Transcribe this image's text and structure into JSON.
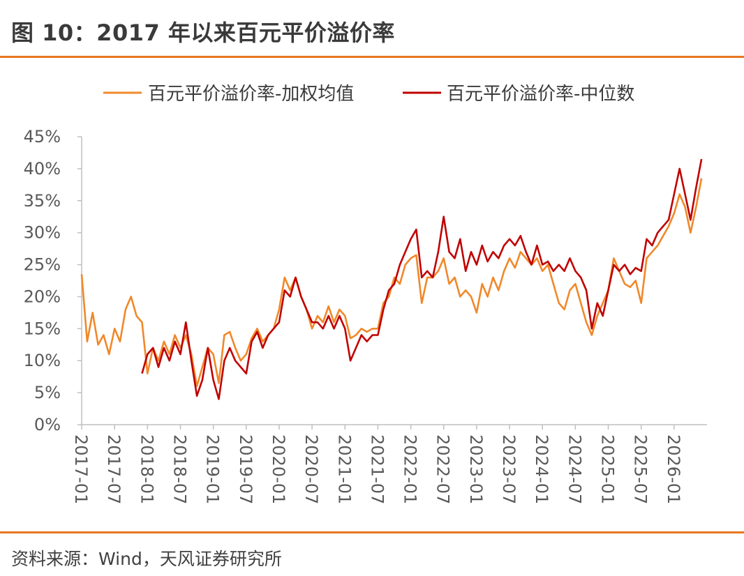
{
  "title": "图 10：2017 年以来百元平价溢价率",
  "source": "资料来源：Wind，天风证券研究所",
  "colors": {
    "accent": "#e87722",
    "weighted": "#f0882a",
    "median": "#c00000"
  },
  "chart_data": {
    "type": "line",
    "title": "",
    "xlabel": "",
    "ylabel": "",
    "ylim": [
      0,
      45
    ],
    "y_ticks": [
      "0%",
      "5%",
      "10%",
      "15%",
      "20%",
      "25%",
      "30%",
      "35%",
      "40%",
      "45%"
    ],
    "x_ticks": [
      "2017-01",
      "2017-07",
      "2018-01",
      "2018-07",
      "2019-01",
      "2019-07",
      "2020-01",
      "2020-07",
      "2021-01",
      "2021-07",
      "2022-01",
      "2022-07",
      "2023-01",
      "2023-07",
      "2024-01",
      "2024-07",
      "2025-01",
      "2025-07",
      "2026-01"
    ],
    "xlim": [
      "2017-01",
      "2026-07"
    ],
    "grid": false,
    "legend": "top",
    "series": [
      {
        "name": "百元平价溢价率-加权均值",
        "color": "#f0882a",
        "points": [
          [
            "2017-01",
            23.5
          ],
          [
            "2017-02",
            13
          ],
          [
            "2017-03",
            17.5
          ],
          [
            "2017-04",
            12.5
          ],
          [
            "2017-05",
            14
          ],
          [
            "2017-06",
            11
          ],
          [
            "2017-07",
            15
          ],
          [
            "2017-08",
            13
          ],
          [
            "2017-09",
            18
          ],
          [
            "2017-10",
            20
          ],
          [
            "2017-11",
            17
          ],
          [
            "2017-12",
            16
          ],
          [
            "2018-01",
            8
          ],
          [
            "2018-02",
            12
          ],
          [
            "2018-03",
            10
          ],
          [
            "2018-04",
            13
          ],
          [
            "2018-05",
            11
          ],
          [
            "2018-06",
            14
          ],
          [
            "2018-07",
            12
          ],
          [
            "2018-08",
            14
          ],
          [
            "2018-09",
            11
          ],
          [
            "2018-10",
            6
          ],
          [
            "2018-11",
            9
          ],
          [
            "2018-12",
            12
          ],
          [
            "2019-01",
            11
          ],
          [
            "2019-02",
            6.5
          ],
          [
            "2019-03",
            14
          ],
          [
            "2019-04",
            14.5
          ],
          [
            "2019-05",
            12
          ],
          [
            "2019-06",
            10
          ],
          [
            "2019-07",
            11
          ],
          [
            "2019-08",
            13.5
          ],
          [
            "2019-09",
            15
          ],
          [
            "2019-10",
            13
          ],
          [
            "2019-11",
            14
          ],
          [
            "2019-12",
            15
          ],
          [
            "2020-01",
            18
          ],
          [
            "2020-02",
            23
          ],
          [
            "2020-03",
            21
          ],
          [
            "2020-04",
            23
          ],
          [
            "2020-05",
            20
          ],
          [
            "2020-06",
            18
          ],
          [
            "2020-07",
            15
          ],
          [
            "2020-08",
            17
          ],
          [
            "2020-09",
            16
          ],
          [
            "2020-10",
            18.5
          ],
          [
            "2020-11",
            16
          ],
          [
            "2020-12",
            18
          ],
          [
            "2021-01",
            17
          ],
          [
            "2021-02",
            13.5
          ],
          [
            "2021-03",
            14
          ],
          [
            "2021-04",
            15
          ],
          [
            "2021-05",
            14.5
          ],
          [
            "2021-06",
            15
          ],
          [
            "2021-07",
            15
          ],
          [
            "2021-08",
            19
          ],
          [
            "2021-09",
            20
          ],
          [
            "2021-10",
            23
          ],
          [
            "2021-11",
            22
          ],
          [
            "2021-12",
            25
          ],
          [
            "2022-01",
            26
          ],
          [
            "2022-02",
            26.5
          ],
          [
            "2022-03",
            19
          ],
          [
            "2022-04",
            23
          ],
          [
            "2022-05",
            23
          ],
          [
            "2022-06",
            24
          ],
          [
            "2022-07",
            26
          ],
          [
            "2022-08",
            22
          ],
          [
            "2022-09",
            23
          ],
          [
            "2022-10",
            20
          ],
          [
            "2022-11",
            21
          ],
          [
            "2022-12",
            20
          ],
          [
            "2023-01",
            17.5
          ],
          [
            "2023-02",
            22
          ],
          [
            "2023-03",
            20
          ],
          [
            "2023-04",
            23
          ],
          [
            "2023-05",
            21
          ],
          [
            "2023-06",
            24
          ],
          [
            "2023-07",
            26
          ],
          [
            "2023-08",
            24.5
          ],
          [
            "2023-09",
            27
          ],
          [
            "2023-10",
            26
          ],
          [
            "2023-11",
            25
          ],
          [
            "2023-12",
            26
          ],
          [
            "2024-01",
            24
          ],
          [
            "2024-02",
            25
          ],
          [
            "2024-03",
            22
          ],
          [
            "2024-04",
            19
          ],
          [
            "2024-05",
            18
          ],
          [
            "2024-06",
            21
          ],
          [
            "2024-07",
            22
          ],
          [
            "2024-08",
            19
          ],
          [
            "2024-09",
            16
          ],
          [
            "2024-10",
            14
          ],
          [
            "2024-11",
            17
          ],
          [
            "2024-12",
            19
          ],
          [
            "2025-01",
            21
          ],
          [
            "2025-02",
            26
          ],
          [
            "2025-03",
            24
          ],
          [
            "2025-04",
            22
          ],
          [
            "2025-05",
            21.5
          ],
          [
            "2025-06",
            22.5
          ],
          [
            "2025-07",
            19
          ],
          [
            "2025-08",
            26
          ],
          [
            "2025-09",
            27
          ],
          [
            "2025-10",
            28
          ],
          [
            "2025-11",
            29.5
          ],
          [
            "2025-12",
            31
          ],
          [
            "2026-01",
            33
          ],
          [
            "2026-02",
            36
          ],
          [
            "2026-03",
            34
          ],
          [
            "2026-04",
            30
          ],
          [
            "2026-05",
            34
          ],
          [
            "2026-06",
            38.5
          ]
        ]
      },
      {
        "name": "百元平价溢价率-中位数",
        "color": "#c00000",
        "points": [
          [
            "2017-12",
            8
          ],
          [
            "2018-01",
            11
          ],
          [
            "2018-02",
            12
          ],
          [
            "2018-03",
            9
          ],
          [
            "2018-04",
            12
          ],
          [
            "2018-05",
            10
          ],
          [
            "2018-06",
            13
          ],
          [
            "2018-07",
            11
          ],
          [
            "2018-08",
            16
          ],
          [
            "2018-09",
            10
          ],
          [
            "2018-10",
            4.5
          ],
          [
            "2018-11",
            7
          ],
          [
            "2018-12",
            12
          ],
          [
            "2019-01",
            7
          ],
          [
            "2019-02",
            4
          ],
          [
            "2019-03",
            10
          ],
          [
            "2019-04",
            12
          ],
          [
            "2019-05",
            10
          ],
          [
            "2019-06",
            9
          ],
          [
            "2019-07",
            8
          ],
          [
            "2019-08",
            13
          ],
          [
            "2019-09",
            14.5
          ],
          [
            "2019-10",
            12
          ],
          [
            "2019-11",
            14
          ],
          [
            "2019-12",
            15
          ],
          [
            "2020-01",
            16
          ],
          [
            "2020-02",
            21
          ],
          [
            "2020-03",
            20
          ],
          [
            "2020-04",
            23
          ],
          [
            "2020-05",
            20
          ],
          [
            "2020-06",
            18
          ],
          [
            "2020-07",
            16
          ],
          [
            "2020-08",
            16
          ],
          [
            "2020-09",
            15
          ],
          [
            "2020-10",
            17
          ],
          [
            "2020-11",
            15
          ],
          [
            "2020-12",
            17
          ],
          [
            "2021-01",
            15
          ],
          [
            "2021-02",
            10
          ],
          [
            "2021-03",
            12
          ],
          [
            "2021-04",
            14
          ],
          [
            "2021-05",
            13
          ],
          [
            "2021-06",
            14
          ],
          [
            "2021-07",
            14
          ],
          [
            "2021-08",
            18
          ],
          [
            "2021-09",
            21
          ],
          [
            "2021-10",
            22
          ],
          [
            "2021-11",
            25
          ],
          [
            "2021-12",
            27
          ],
          [
            "2022-01",
            29
          ],
          [
            "2022-02",
            30.5
          ],
          [
            "2022-03",
            23
          ],
          [
            "2022-04",
            24
          ],
          [
            "2022-05",
            23
          ],
          [
            "2022-06",
            27
          ],
          [
            "2022-07",
            32.5
          ],
          [
            "2022-08",
            27
          ],
          [
            "2022-09",
            26
          ],
          [
            "2022-10",
            29
          ],
          [
            "2022-11",
            24
          ],
          [
            "2022-12",
            27
          ],
          [
            "2023-01",
            25
          ],
          [
            "2023-02",
            28
          ],
          [
            "2023-03",
            25.5
          ],
          [
            "2023-04",
            27
          ],
          [
            "2023-05",
            26
          ],
          [
            "2023-06",
            28
          ],
          [
            "2023-07",
            29
          ],
          [
            "2023-08",
            28
          ],
          [
            "2023-09",
            29.5
          ],
          [
            "2023-10",
            27
          ],
          [
            "2023-11",
            25
          ],
          [
            "2023-12",
            28
          ],
          [
            "2024-01",
            25
          ],
          [
            "2024-02",
            25.5
          ],
          [
            "2024-03",
            24
          ],
          [
            "2024-04",
            25
          ],
          [
            "2024-05",
            24
          ],
          [
            "2024-06",
            26
          ],
          [
            "2024-07",
            24
          ],
          [
            "2024-08",
            23
          ],
          [
            "2024-09",
            21
          ],
          [
            "2024-10",
            15
          ],
          [
            "2024-11",
            19
          ],
          [
            "2024-12",
            17
          ],
          [
            "2025-01",
            21
          ],
          [
            "2025-02",
            25
          ],
          [
            "2025-03",
            24
          ],
          [
            "2025-04",
            25
          ],
          [
            "2025-05",
            23.5
          ],
          [
            "2025-06",
            24.5
          ],
          [
            "2025-07",
            24
          ],
          [
            "2025-08",
            29
          ],
          [
            "2025-09",
            28
          ],
          [
            "2025-10",
            30
          ],
          [
            "2025-11",
            31
          ],
          [
            "2025-12",
            32
          ],
          [
            "2026-01",
            36
          ],
          [
            "2026-02",
            40
          ],
          [
            "2026-03",
            36
          ],
          [
            "2026-04",
            32
          ],
          [
            "2026-05",
            37
          ],
          [
            "2026-06",
            41.5
          ]
        ]
      }
    ]
  }
}
